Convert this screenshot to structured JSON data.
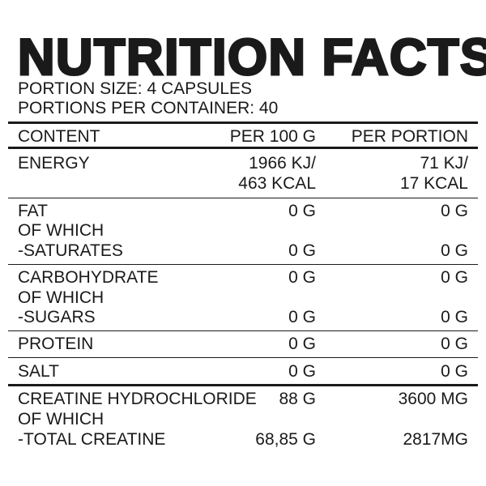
{
  "title": "NUTRITION FACTS",
  "portion_size": "PORTION SIZE: 4 CAPSULES",
  "portions_per_container": "PORTIONS PER CONTAINER: 40",
  "header": {
    "content": "CONTENT",
    "per100": "PER 100 G",
    "per_portion": "PER PORTION"
  },
  "rows": {
    "energy": {
      "label": "ENERGY",
      "per100_kj": "1966 KJ/",
      "per100_kcal": "463 KCAL",
      "portion_kj": "71 KJ/",
      "portion_kcal": "17 KCAL"
    },
    "fat": {
      "label": "FAT",
      "of_which": "OF WHICH",
      "sub_label": "-SATURATES",
      "per100": "0 G",
      "portion": "0 G",
      "sub_per100": "0 G",
      "sub_portion": "0 G"
    },
    "carbohydrate": {
      "label": "CARBOHYDRATE",
      "of_which": "OF WHICH",
      "sub_label": "-SUGARS",
      "per100": "0 G",
      "portion": "0 G",
      "sub_per100": "0 G",
      "sub_portion": "0 G"
    },
    "protein": {
      "label": "PROTEIN",
      "per100": "0 G",
      "portion": "0 G"
    },
    "salt": {
      "label": "SALT",
      "per100": "0 G",
      "portion": "0 G"
    },
    "creatine": {
      "label": "CREATINE HYDROCHLORIDE",
      "of_which": "OF WHICH",
      "sub_label": "-TOTAL CREATINE",
      "per100": "88 G",
      "portion": "3600 MG",
      "sub_per100": "68,85 G",
      "sub_portion": "2817MG"
    }
  }
}
